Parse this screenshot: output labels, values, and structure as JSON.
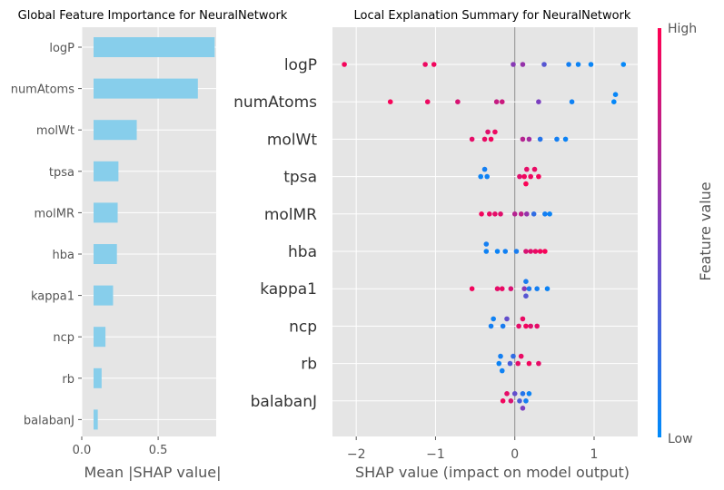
{
  "chart_data": [
    {
      "type": "bar",
      "orientation": "horizontal",
      "title": "Global Feature Importance for NeuralNetwork",
      "xlabel": "Mean |SHAP value|",
      "ylabel": "",
      "categories": [
        "logP",
        "numAtoms",
        "molWt",
        "tpsa",
        "molMR",
        "hba",
        "kappa1",
        "ncp",
        "rb",
        "balabanJ"
      ],
      "values": [
        0.87,
        0.76,
        0.36,
        0.24,
        0.235,
        0.23,
        0.205,
        0.155,
        0.13,
        0.105
      ],
      "xlim": [
        0,
        0.88
      ],
      "xticks": [
        0,
        0.5
      ],
      "xtick_labels": [
        "0.0",
        "0.5"
      ],
      "bar_color": "#87ceeb",
      "grid": true
    },
    {
      "type": "scatter",
      "subtype": "beeswarm",
      "title": "Local Explanation Summary for NeuralNetwork",
      "xlabel": "SHAP value (impact on model output)",
      "ylabel": "",
      "categories": [
        "logP",
        "numAtoms",
        "molWt",
        "tpsa",
        "molMR",
        "hba",
        "kappa1",
        "ncp",
        "rb",
        "balabanJ"
      ],
      "xlim": [
        -2.3,
        1.55
      ],
      "xticks": [
        -2,
        -1,
        0,
        1
      ],
      "xtick_labels": [
        "−2",
        "−1",
        "0",
        "1"
      ],
      "colorbar": {
        "label": "Feature value",
        "high_label": "High",
        "low_label": "Low",
        "high_color": "#ff0052",
        "low_color": "#008bfb"
      },
      "grid": true,
      "points": [
        {
          "feature": "logP",
          "dots": [
            [
              -2.15,
              0.96
            ],
            [
              -1.13,
              0.93
            ],
            [
              -1.02,
              0.95
            ],
            [
              -0.02,
              0.55
            ],
            [
              0.1,
              0.6
            ],
            [
              0.37,
              0.35
            ],
            [
              0.68,
              0.08
            ],
            [
              0.8,
              0.05
            ],
            [
              0.96,
              0.04
            ],
            [
              1.37,
              0.02
            ]
          ]
        },
        {
          "feature": "numAtoms",
          "dots": [
            [
              -1.57,
              0.97
            ],
            [
              -1.1,
              0.93
            ],
            [
              -0.72,
              0.85
            ],
            [
              -0.23,
              0.78
            ],
            [
              -0.16,
              0.8
            ],
            [
              0.3,
              0.5
            ],
            [
              0.72,
              0.06
            ],
            [
              1.25,
              0.02
            ],
            [
              1.27,
              0.03
            ]
          ]
        },
        {
          "feature": "molWt",
          "dots": [
            [
              -0.54,
              0.9
            ],
            [
              -0.38,
              0.92
            ],
            [
              -0.3,
              0.95
            ],
            [
              -0.34,
              0.88
            ],
            [
              -0.25,
              0.93
            ],
            [
              0.1,
              0.72
            ],
            [
              0.18,
              0.65
            ],
            [
              0.32,
              0.15
            ],
            [
              0.53,
              0.08
            ],
            [
              0.64,
              0.05
            ]
          ]
        },
        {
          "feature": "tpsa",
          "dots": [
            [
              -0.43,
              0.05
            ],
            [
              -0.38,
              0.08
            ],
            [
              -0.35,
              0.06
            ],
            [
              0.06,
              0.88
            ],
            [
              0.12,
              0.95
            ],
            [
              0.15,
              0.9
            ],
            [
              0.2,
              0.93
            ],
            [
              0.25,
              0.92
            ],
            [
              0.3,
              0.96
            ],
            [
              0.14,
              0.98
            ]
          ]
        },
        {
          "feature": "molMR",
          "dots": [
            [
              -0.42,
              0.95
            ],
            [
              -0.32,
              0.92
            ],
            [
              -0.25,
              0.9
            ],
            [
              -0.18,
              0.88
            ],
            [
              0.0,
              0.72
            ],
            [
              0.08,
              0.75
            ],
            [
              0.15,
              0.6
            ],
            [
              0.24,
              0.2
            ],
            [
              0.38,
              0.08
            ],
            [
              0.44,
              0.05
            ]
          ]
        },
        {
          "feature": "hba",
          "dots": [
            [
              -0.36,
              0.06
            ],
            [
              -0.36,
              0.08
            ],
            [
              -0.22,
              0.05
            ],
            [
              -0.12,
              0.07
            ],
            [
              0.02,
              0.1
            ],
            [
              0.14,
              0.85
            ],
            [
              0.2,
              0.88
            ],
            [
              0.26,
              0.92
            ],
            [
              0.32,
              0.95
            ],
            [
              0.38,
              0.97
            ]
          ]
        },
        {
          "feature": "kappa1",
          "dots": [
            [
              -0.54,
              0.95
            ],
            [
              -0.22,
              0.9
            ],
            [
              -0.16,
              0.92
            ],
            [
              -0.05,
              0.85
            ],
            [
              0.12,
              0.55
            ],
            [
              0.14,
              0.1
            ],
            [
              0.18,
              0.12
            ],
            [
              0.28,
              0.08
            ],
            [
              0.41,
              0.05
            ],
            [
              0.14,
              0.35
            ]
          ]
        },
        {
          "feature": "ncp",
          "dots": [
            [
              -0.3,
              0.08
            ],
            [
              -0.27,
              0.06
            ],
            [
              -0.15,
              0.1
            ],
            [
              -0.1,
              0.4
            ],
            [
              0.05,
              0.9
            ],
            [
              0.1,
              0.92
            ],
            [
              0.14,
              0.95
            ],
            [
              0.2,
              0.88
            ],
            [
              0.28,
              0.9
            ]
          ]
        },
        {
          "feature": "rb",
          "dots": [
            [
              -0.2,
              0.05
            ],
            [
              -0.18,
              0.08
            ],
            [
              -0.16,
              0.06
            ],
            [
              -0.06,
              0.3
            ],
            [
              -0.02,
              0.2
            ],
            [
              0.04,
              0.9
            ],
            [
              0.08,
              0.92
            ],
            [
              0.18,
              0.95
            ],
            [
              0.3,
              0.9
            ]
          ]
        },
        {
          "feature": "balabanJ",
          "dots": [
            [
              -0.15,
              0.95
            ],
            [
              -0.1,
              0.9
            ],
            [
              -0.05,
              0.85
            ],
            [
              0.0,
              0.4
            ],
            [
              0.06,
              0.3
            ],
            [
              0.1,
              0.15
            ],
            [
              0.14,
              0.08
            ],
            [
              0.18,
              0.05
            ],
            [
              0.1,
              0.5
            ]
          ]
        }
      ]
    }
  ]
}
